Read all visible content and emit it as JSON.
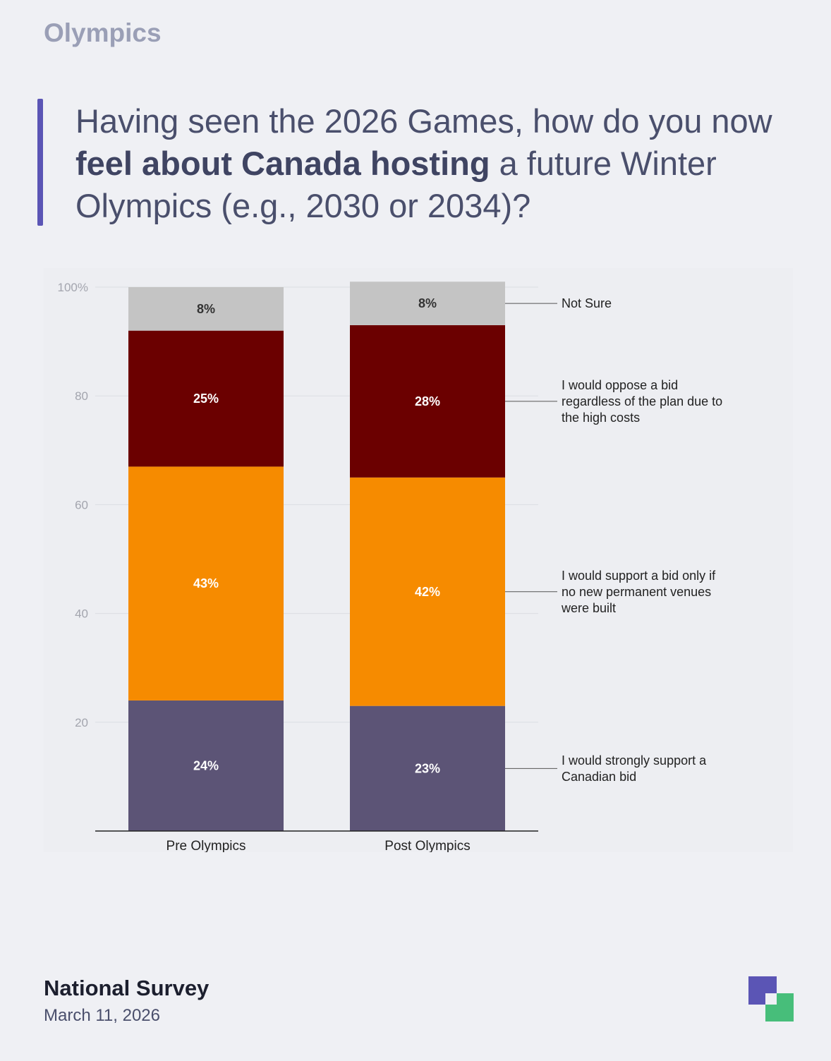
{
  "header": {
    "section": "Olympics",
    "title_part1": "Having seen the 2026 Games, how do you now ",
    "title_bold": "feel about Canada hosting",
    "title_part2": " a future Winter Olympics (e.g., 2030 or 2034)?"
  },
  "footer": {
    "title": "National Survey",
    "date": "March 11, 2026"
  },
  "logo": {
    "icon": "brand-logo-icon",
    "colors": [
      "#5b55b5",
      "#47be7a"
    ]
  },
  "chart_data": {
    "type": "bar",
    "stacked": true,
    "categories": [
      "Pre Olympics",
      "Post Olympics"
    ],
    "ylim": [
      0,
      100
    ],
    "yticks": [
      20,
      40,
      60,
      80,
      100
    ],
    "ytick_labels": [
      "20",
      "40",
      "60",
      "80",
      "100%"
    ],
    "grid": true,
    "legend_placement": "right, as line-connected labels",
    "series": [
      {
        "name": "I would strongly support a Canadian bid",
        "values": [
          24,
          23
        ],
        "labels": [
          "24%",
          "23%"
        ],
        "color": "#5c5476"
      },
      {
        "name": "I would support a bid only if no new permanent venues were built",
        "values": [
          43,
          42
        ],
        "labels": [
          "43%",
          "42%"
        ],
        "color": "#f68b00"
      },
      {
        "name": "I would oppose a bid regardless of the plan due to the high costs",
        "values": [
          25,
          28
        ],
        "labels": [
          "25%",
          "28%"
        ],
        "color": "#6b0000"
      },
      {
        "name": "Not Sure",
        "values": [
          8,
          8
        ],
        "labels": [
          "8%",
          "8%"
        ],
        "color": "#c4c4c4"
      }
    ]
  }
}
